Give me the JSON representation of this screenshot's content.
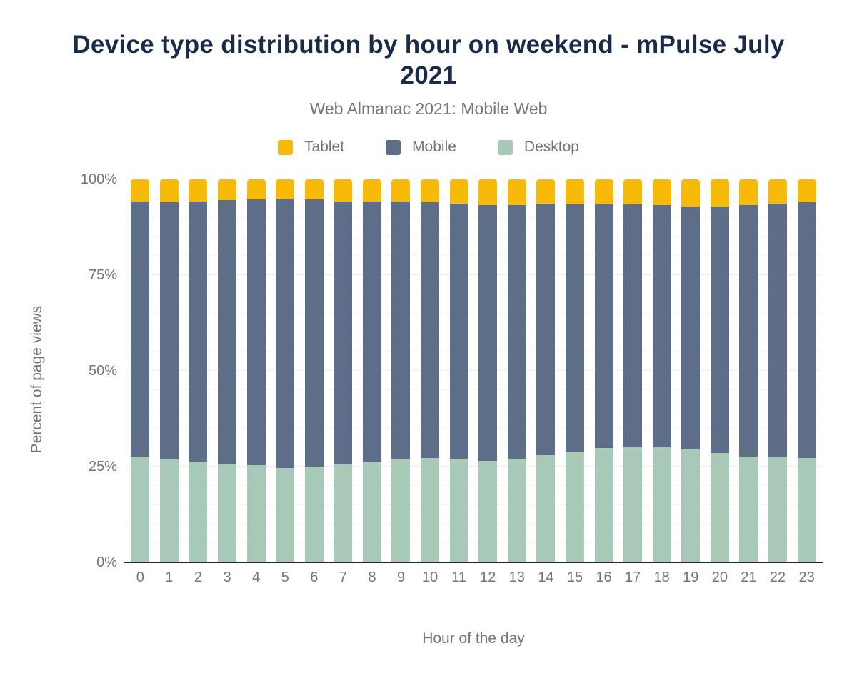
{
  "title": "Device type distribution by hour on weekend - mPulse July 2021",
  "subtitle": "Web Almanac 2021: Mobile Web",
  "legend": [
    {
      "label": "Tablet",
      "color": "#F8BA08"
    },
    {
      "label": "Mobile",
      "color": "#5F6E88"
    },
    {
      "label": "Desktop",
      "color": "#A8C9B8"
    }
  ],
  "colors": {
    "title": "#1a2b4a",
    "axis_text": "#757575",
    "axis_line": "#262626",
    "gridline_minor": "#f6f6f6",
    "gridline_major": "#ededed",
    "background": "#ffffff"
  },
  "y_ticks": [
    {
      "label": "0%",
      "value": 0
    },
    {
      "label": "25%",
      "value": 25
    },
    {
      "label": "50%",
      "value": 50
    },
    {
      "label": "75%",
      "value": 75
    },
    {
      "label": "100%",
      "value": 100
    }
  ],
  "chart_data": {
    "type": "bar",
    "stacked": true,
    "title": "Device type distribution by hour on weekend - mPulse July 2021",
    "subtitle": "Web Almanac 2021: Mobile Web",
    "xlabel": "Hour of the day",
    "ylabel": "Percent of page views",
    "ylim": [
      0,
      100
    ],
    "y_tick_interval": 25,
    "minor_grid_interval": 5,
    "grid": true,
    "legend_position": "top",
    "units": "percent of page views",
    "categories": [
      "0",
      "1",
      "2",
      "3",
      "4",
      "5",
      "6",
      "7",
      "8",
      "9",
      "10",
      "11",
      "12",
      "13",
      "14",
      "15",
      "16",
      "17",
      "18",
      "19",
      "20",
      "21",
      "22",
      "23"
    ],
    "series": [
      {
        "name": "Desktop",
        "color": "#A8C9B8",
        "values": [
          27.6,
          26.8,
          26.3,
          25.8,
          25.3,
          24.6,
          25.0,
          25.6,
          26.4,
          27.1,
          27.2,
          27.1,
          26.5,
          27.0,
          27.9,
          29.0,
          29.8,
          30.1,
          30.0,
          29.5,
          28.5,
          27.7,
          27.4,
          27.2
        ]
      },
      {
        "name": "Mobile",
        "color": "#5F6E88",
        "values": [
          66.6,
          67.2,
          67.9,
          68.8,
          69.5,
          70.4,
          69.8,
          68.7,
          67.8,
          67.1,
          66.8,
          66.6,
          66.7,
          66.3,
          65.7,
          64.5,
          63.7,
          63.4,
          63.3,
          63.5,
          64.5,
          65.5,
          66.2,
          66.8
        ]
      },
      {
        "name": "Tablet",
        "color": "#F8BA08",
        "values": [
          5.8,
          6.0,
          5.8,
          5.4,
          5.2,
          5.0,
          5.2,
          5.7,
          5.8,
          5.8,
          6.0,
          6.3,
          6.8,
          6.7,
          6.4,
          6.5,
          6.5,
          6.5,
          6.7,
          7.0,
          7.0,
          6.8,
          6.4,
          6.0
        ]
      }
    ]
  }
}
